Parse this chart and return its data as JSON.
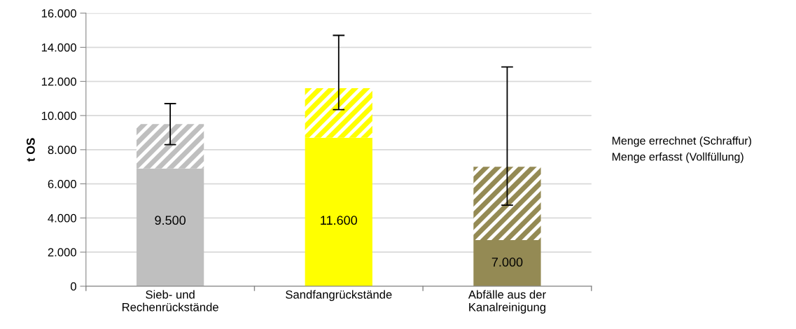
{
  "chart_data": {
    "type": "bar",
    "stacked": true,
    "ylabel": "t OS",
    "categories": [
      "Sieb- und\nRechenrückstände",
      "Sandfangrückstände",
      "Abfälle aus der\nKanalreinigung"
    ],
    "series": [
      {
        "name": "Menge erfasst (Vollfüllung)",
        "colors": [
          "#bfbfbf",
          "#ffff00",
          "#948a54"
        ],
        "values": [
          6900,
          8700,
          2700
        ]
      },
      {
        "name": "Menge errechnet (Schraffur)",
        "colors": [
          "#bfbfbf",
          "#ffff00",
          "#948a54"
        ],
        "values": [
          2600,
          2900,
          4300
        ],
        "errors": [
          [
            8300,
            10700
          ],
          [
            10350,
            14700
          ],
          [
            4750,
            12850
          ]
        ]
      }
    ],
    "totals": [
      "9.500",
      "11.600",
      "7.000"
    ],
    "ylim": [
      0,
      16000
    ],
    "yticks": [
      {
        "value": 0,
        "label": "0"
      },
      {
        "value": 2000,
        "label": "2.000"
      },
      {
        "value": 4000,
        "label": "4.000"
      },
      {
        "value": 6000,
        "label": "6.000"
      },
      {
        "value": 8000,
        "label": "8.000"
      },
      {
        "value": 10000,
        "label": "10.000"
      },
      {
        "value": 12000,
        "label": "12.000"
      },
      {
        "value": 14000,
        "label": "14.000"
      },
      {
        "value": 16000,
        "label": "16.000"
      }
    ],
    "grid": "y",
    "legend": "right"
  }
}
